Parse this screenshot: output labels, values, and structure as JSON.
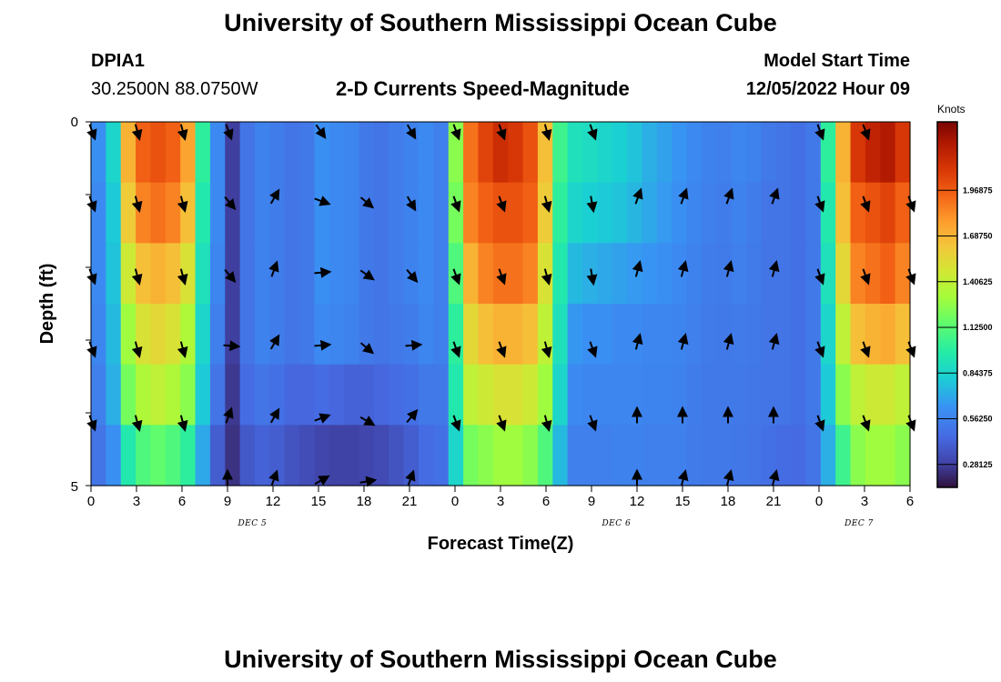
{
  "header": {
    "title": "University of Southern Mississippi Ocean Cube",
    "station_id": "DPIA1",
    "station_coords": "30.2500N  88.0750W",
    "subtitle": "2-D Currents Speed-Magnitude",
    "model_start_label": "Model Start Time",
    "model_start_value": "12/05/2022 Hour 09"
  },
  "footer": {
    "title": "University of Southern Mississippi Ocean Cube"
  },
  "chart_data": {
    "type": "heatmap",
    "title": "2-D Currents Speed-Magnitude",
    "xlabel": "Forecast Time(Z)",
    "ylabel": "Depth (ft)",
    "x_hours": [
      0,
      1,
      2,
      3,
      4,
      5,
      6,
      7,
      8,
      9,
      10,
      11,
      12,
      13,
      14,
      15,
      16,
      17,
      18,
      19,
      20,
      21,
      22,
      23,
      24,
      25,
      26,
      27,
      28,
      29,
      30,
      31,
      32,
      33,
      34,
      35,
      36,
      37,
      38,
      39,
      40,
      41,
      42,
      43,
      44,
      45,
      46,
      47,
      48,
      49,
      50,
      51,
      52,
      53,
      54
    ],
    "x_range": [
      0,
      54
    ],
    "depth_levels": 6,
    "ylim": [
      0,
      5
    ],
    "y_tick_labels": [
      "0",
      "5"
    ],
    "x_tick_labels": [
      "0",
      "3",
      "6",
      "9",
      "12",
      "15",
      "18",
      "21",
      "0",
      "3",
      "6",
      "9",
      "12",
      "15",
      "18",
      "21",
      "0",
      "3",
      "6"
    ],
    "date_labels": [
      {
        "hour": 11,
        "text": "DEC 5"
      },
      {
        "hour": 35,
        "text": "DEC 6"
      },
      {
        "hour": 51,
        "text": "DEC 7"
      }
    ],
    "speed_knots": [
      [
        0.62,
        0.85,
        1.7,
        1.95,
        2.0,
        1.95,
        1.75,
        1.0,
        0.6,
        0.28,
        0.5,
        0.56,
        0.54,
        0.5,
        0.52,
        0.62,
        0.6,
        0.58,
        0.52,
        0.5,
        0.54,
        0.56,
        0.6,
        0.55,
        1.25,
        1.9,
        2.05,
        2.15,
        2.1,
        2.0,
        1.65,
        1.05,
        0.9,
        0.88,
        0.85,
        0.82,
        0.78,
        0.72,
        0.68,
        0.64,
        0.6,
        0.56,
        0.55,
        0.58,
        0.56,
        0.52,
        0.5,
        0.48,
        0.52,
        1.0,
        1.7,
        2.1,
        2.2,
        2.25,
        2.1
      ],
      [
        0.6,
        0.8,
        1.6,
        1.85,
        1.9,
        1.85,
        1.65,
        0.95,
        0.6,
        0.28,
        0.5,
        0.56,
        0.54,
        0.5,
        0.52,
        0.62,
        0.6,
        0.58,
        0.52,
        0.5,
        0.54,
        0.56,
        0.6,
        0.55,
        1.2,
        1.85,
        1.95,
        2.0,
        2.0,
        1.95,
        1.6,
        1.0,
        0.85,
        0.82,
        0.8,
        0.78,
        0.74,
        0.7,
        0.66,
        0.62,
        0.58,
        0.55,
        0.54,
        0.56,
        0.54,
        0.5,
        0.5,
        0.48,
        0.52,
        0.95,
        1.65,
        1.95,
        2.0,
        2.05,
        1.95
      ],
      [
        0.6,
        0.78,
        1.45,
        1.65,
        1.7,
        1.65,
        1.5,
        0.9,
        0.58,
        0.28,
        0.5,
        0.56,
        0.54,
        0.5,
        0.52,
        0.62,
        0.6,
        0.58,
        0.52,
        0.5,
        0.54,
        0.56,
        0.6,
        0.55,
        1.1,
        1.7,
        1.85,
        1.9,
        1.9,
        1.85,
        1.5,
        0.95,
        0.75,
        0.72,
        0.7,
        0.68,
        0.66,
        0.64,
        0.62,
        0.6,
        0.56,
        0.54,
        0.53,
        0.55,
        0.53,
        0.5,
        0.5,
        0.48,
        0.52,
        0.9,
        1.55,
        1.85,
        1.9,
        1.95,
        1.85
      ],
      [
        0.58,
        0.75,
        1.3,
        1.5,
        1.55,
        1.5,
        1.35,
        0.85,
        0.55,
        0.28,
        0.5,
        0.56,
        0.54,
        0.5,
        0.52,
        0.6,
        0.58,
        0.56,
        0.52,
        0.5,
        0.52,
        0.54,
        0.58,
        0.55,
        1.0,
        1.55,
        1.65,
        1.7,
        1.7,
        1.65,
        1.4,
        0.9,
        0.65,
        0.62,
        0.62,
        0.6,
        0.6,
        0.58,
        0.58,
        0.57,
        0.55,
        0.53,
        0.52,
        0.53,
        0.52,
        0.5,
        0.5,
        0.48,
        0.52,
        0.85,
        1.4,
        1.65,
        1.7,
        1.72,
        1.65
      ],
      [
        0.55,
        0.72,
        1.2,
        1.35,
        1.4,
        1.35,
        1.25,
        0.8,
        0.5,
        0.26,
        0.46,
        0.5,
        0.48,
        0.44,
        0.44,
        0.46,
        0.44,
        0.42,
        0.42,
        0.44,
        0.46,
        0.48,
        0.52,
        0.52,
        0.95,
        1.4,
        1.45,
        1.5,
        1.5,
        1.45,
        1.3,
        0.85,
        0.6,
        0.58,
        0.58,
        0.58,
        0.58,
        0.57,
        0.57,
        0.56,
        0.54,
        0.52,
        0.52,
        0.52,
        0.51,
        0.5,
        0.5,
        0.48,
        0.52,
        0.8,
        1.25,
        1.4,
        1.45,
        1.45,
        1.4
      ],
      [
        0.5,
        0.62,
        0.95,
        1.1,
        1.15,
        1.1,
        1.0,
        0.7,
        0.4,
        0.24,
        0.38,
        0.42,
        0.4,
        0.36,
        0.33,
        0.3,
        0.29,
        0.29,
        0.3,
        0.32,
        0.36,
        0.4,
        0.46,
        0.48,
        0.85,
        1.2,
        1.25,
        1.3,
        1.3,
        1.25,
        1.1,
        0.75,
        0.55,
        0.55,
        0.55,
        0.56,
        0.56,
        0.55,
        0.55,
        0.55,
        0.53,
        0.52,
        0.52,
        0.51,
        0.5,
        0.48,
        0.46,
        0.45,
        0.5,
        0.72,
        1.05,
        1.25,
        1.3,
        1.3,
        1.25
      ]
    ],
    "vector_hours": [
      0,
      3,
      6,
      9,
      12,
      15,
      18,
      21,
      24,
      27,
      30,
      33,
      36,
      39,
      42,
      45,
      48,
      51,
      54
    ],
    "vector_directions_deg": [
      [
        160,
        165,
        165,
        160,
        null,
        145,
        null,
        150,
        160,
        160,
        165,
        160,
        null,
        null,
        null,
        null,
        160,
        160,
        null
      ],
      [
        160,
        165,
        165,
        140,
        30,
        110,
        130,
        150,
        160,
        160,
        165,
        170,
        20,
        20,
        20,
        20,
        160,
        160,
        160
      ],
      [
        160,
        165,
        165,
        140,
        20,
        85,
        125,
        140,
        160,
        160,
        165,
        170,
        15,
        15,
        15,
        15,
        160,
        160,
        160
      ],
      [
        160,
        165,
        165,
        95,
        30,
        85,
        130,
        85,
        160,
        160,
        165,
        160,
        15,
        15,
        15,
        15,
        160,
        160,
        160
      ],
      [
        160,
        165,
        165,
        20,
        30,
        70,
        120,
        40,
        160,
        160,
        165,
        160,
        0,
        0,
        0,
        0,
        160,
        160,
        160
      ],
      [
        null,
        null,
        null,
        0,
        20,
        60,
        80,
        20,
        null,
        null,
        null,
        null,
        0,
        15,
        15,
        15,
        null,
        null,
        null
      ]
    ],
    "colorbar": {
      "label": "Knots",
      "min": 0.14,
      "max": 2.39,
      "ticks": [
        "0.28125",
        "0.56250",
        "0.84375",
        "1.12500",
        "1.40625",
        "1.68750",
        "1.96875"
      ],
      "tick_values": [
        0.28125,
        0.5625,
        0.84375,
        1.125,
        1.40625,
        1.6875,
        1.96875
      ]
    }
  }
}
